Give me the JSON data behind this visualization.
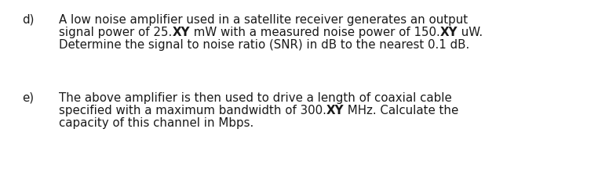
{
  "background_color": "#ffffff",
  "text_color": "#1a1a1a",
  "font_size": 10.8,
  "font_family": "DejaVu Sans",
  "label_d": "d)",
  "label_e": "e)",
  "d_line1": "A low noise amplifier used in a satellite receiver generates an output",
  "d_line2_p1": "signal power of 25.",
  "d_line2_b1": "XY",
  "d_line2_p2": " mW with a measured noise power of 150.",
  "d_line2_b2": "XY",
  "d_line2_p3": " uW.",
  "d_line3": "Determine the signal to noise ratio (SNR) in dB to the nearest 0.1 dB.",
  "e_line1": "The above amplifier is then used to drive a length of coaxial cable",
  "e_line2_p1": "specified with a maximum bandwidth of 300.",
  "e_line2_b1": "XY",
  "e_line2_p2": " MHz. Calculate the",
  "e_line3": "capacity of this channel in Mbps.",
  "fig_width": 7.62,
  "fig_height": 2.29,
  "dpi": 100
}
